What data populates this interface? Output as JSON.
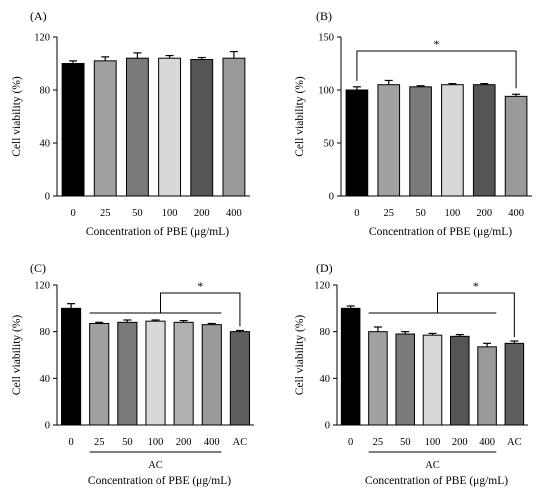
{
  "figure": {
    "panels": [
      "(A)",
      "(B)",
      "(C)",
      "(D)"
    ]
  },
  "chart_data": [
    {
      "type": "bar",
      "panel_label": "(A)",
      "categories": [
        "0",
        "25",
        "50",
        "100",
        "200",
        "400"
      ],
      "values": [
        100,
        102,
        104,
        104,
        103,
        104
      ],
      "errors": [
        2,
        3,
        4,
        2,
        1.5,
        5
      ],
      "colors": [
        "#000000",
        "#a0a0a0",
        "#7a7a7a",
        "#d8d8d8",
        "#555555",
        "#9a9a9a"
      ],
      "xlabel": "Concentration of PBE (μg/mL)",
      "ylabel": "Cell viability (%)",
      "ylim": [
        0,
        120
      ],
      "yticks": [
        "0",
        "40",
        "80",
        "120"
      ],
      "ytick_values": [
        0,
        40,
        80,
        120
      ],
      "significance": []
    },
    {
      "type": "bar",
      "panel_label": "(B)",
      "categories": [
        "0",
        "25",
        "50",
        "100",
        "200",
        "400"
      ],
      "values": [
        100,
        105,
        103,
        105,
        105,
        94
      ],
      "errors": [
        3,
        4,
        1,
        1,
        1,
        2
      ],
      "colors": [
        "#000000",
        "#a0a0a0",
        "#7a7a7a",
        "#d8d8d8",
        "#555555",
        "#9a9a9a"
      ],
      "xlabel": "Concentration of PBE (μg/mL)",
      "ylabel": "Cell viability (%)",
      "ylim": [
        0,
        150
      ],
      "yticks": [
        "0",
        "50",
        "100",
        "150"
      ],
      "ytick_values": [
        0,
        50,
        100,
        150
      ],
      "significance": [
        {
          "from": 0,
          "to": 5,
          "label": "*"
        }
      ]
    },
    {
      "type": "bar",
      "panel_label": "(C)",
      "categories": [
        "0",
        "25",
        "50",
        "100",
        "200",
        "400",
        "AC"
      ],
      "values": [
        100,
        87,
        88,
        89,
        88,
        86,
        80
      ],
      "errors": [
        4,
        1,
        2,
        1,
        1.5,
        1,
        1
      ],
      "colors": [
        "#000000",
        "#a0a0a0",
        "#7a7a7a",
        "#d8d8d8",
        "#b0b0b0",
        "#9a9a9a",
        "#5e5e5e"
      ],
      "xlabel": "Concentration of PBE (μg/mL)",
      "ylabel": "Cell viability (%)",
      "ylim": [
        0,
        120
      ],
      "yticks": [
        "0",
        "40",
        "80",
        "120"
      ],
      "ytick_values": [
        0,
        40,
        80,
        120
      ],
      "group_label": "AC",
      "group_from": 1,
      "group_to": 5,
      "significance": [
        {
          "group_from": 1,
          "group_to": 5,
          "to": 6,
          "label": "*"
        }
      ]
    },
    {
      "type": "bar",
      "panel_label": "(D)",
      "categories": [
        "0",
        "25",
        "50",
        "100",
        "200",
        "400",
        "AC"
      ],
      "values": [
        100,
        80,
        78,
        77,
        76,
        67,
        70
      ],
      "errors": [
        2,
        4,
        2,
        1.5,
        1.5,
        3,
        2
      ],
      "colors": [
        "#000000",
        "#a0a0a0",
        "#7a7a7a",
        "#d8d8d8",
        "#555555",
        "#9a9a9a",
        "#5e5e5e"
      ],
      "xlabel": "Concentration of PBE (μg/mL)",
      "ylabel": "Cell viability (%)",
      "ylim": [
        0,
        120
      ],
      "yticks": [
        "0",
        "40",
        "80",
        "120"
      ],
      "ytick_values": [
        0,
        40,
        80,
        120
      ],
      "group_label": "AC",
      "group_from": 1,
      "group_to": 5,
      "significance": [
        {
          "group_from": 1,
          "group_to": 5,
          "to": 6,
          "label": "*"
        }
      ]
    }
  ]
}
